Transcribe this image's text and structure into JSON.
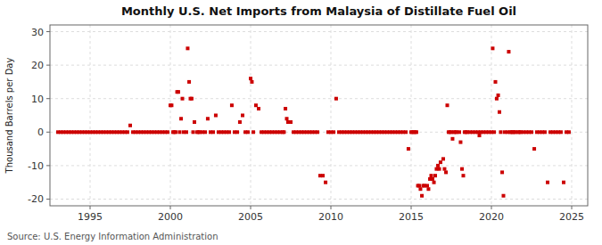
{
  "chart_data": {
    "type": "scatter",
    "title": "Monthly U.S. Net Imports from Malaysia of Distillate Fuel Oil",
    "ylabel": "Thousand Barrels per Day",
    "source": "Source: U.S. Energy Information Administration",
    "color": "#cc0000",
    "marker": "square",
    "grid": true,
    "xlim": [
      1992.5,
      2026.0
    ],
    "ylim": [
      -22,
      32
    ],
    "xticks": [
      1995,
      2000,
      2005,
      2010,
      2015,
      2020,
      2025
    ],
    "yticks": [
      -20,
      -10,
      0,
      10,
      20,
      30
    ],
    "x": [
      1993.0,
      1993.17,
      1993.33,
      1993.5,
      1993.67,
      1993.83,
      1994.0,
      1994.17,
      1994.33,
      1994.5,
      1994.67,
      1994.83,
      1995.0,
      1995.17,
      1995.33,
      1995.5,
      1995.67,
      1995.83,
      1996.0,
      1996.17,
      1996.33,
      1996.5,
      1996.67,
      1996.83,
      1997.0,
      1997.17,
      1997.33,
      1997.5,
      1997.67,
      1997.83,
      1998.0,
      1998.17,
      1998.33,
      1998.5,
      1998.67,
      1998.83,
      1999.0,
      1999.17,
      1999.33,
      1999.5,
      1999.67,
      1999.83,
      2000.0,
      2000.08,
      2000.17,
      2000.25,
      2000.33,
      2000.42,
      2000.5,
      2000.58,
      2000.67,
      2000.75,
      2000.83,
      2001.0,
      2001.08,
      2001.17,
      2001.25,
      2001.33,
      2001.42,
      2001.5,
      2001.67,
      2001.75,
      2001.83,
      2002.0,
      2002.17,
      2002.33,
      2002.5,
      2002.67,
      2002.83,
      2003.0,
      2003.17,
      2003.33,
      2003.5,
      2003.67,
      2003.83,
      2004.0,
      2004.17,
      2004.33,
      2004.5,
      2004.67,
      2004.83,
      2005.0,
      2005.08,
      2005.17,
      2005.33,
      2005.5,
      2005.67,
      2005.83,
      2006.0,
      2006.17,
      2006.33,
      2006.5,
      2006.67,
      2006.83,
      2007.0,
      2007.08,
      2007.17,
      2007.25,
      2007.33,
      2007.5,
      2007.67,
      2007.83,
      2008.0,
      2008.17,
      2008.33,
      2008.5,
      2008.67,
      2008.83,
      2009.0,
      2009.17,
      2009.33,
      2009.5,
      2009.67,
      2009.83,
      2010.0,
      2010.17,
      2010.33,
      2010.5,
      2010.67,
      2010.83,
      2011.0,
      2011.17,
      2011.33,
      2011.5,
      2011.67,
      2011.83,
      2012.0,
      2012.17,
      2012.33,
      2012.5,
      2012.67,
      2012.83,
      2013.0,
      2013.17,
      2013.33,
      2013.5,
      2013.67,
      2013.83,
      2014.0,
      2014.17,
      2014.33,
      2014.5,
      2014.67,
      2014.83,
      2015.0,
      2015.08,
      2015.17,
      2015.25,
      2015.33,
      2015.42,
      2015.5,
      2015.58,
      2015.67,
      2015.75,
      2015.83,
      2016.0,
      2016.08,
      2016.17,
      2016.25,
      2016.33,
      2016.42,
      2016.5,
      2016.58,
      2016.67,
      2016.75,
      2016.83,
      2017.0,
      2017.08,
      2017.17,
      2017.25,
      2017.33,
      2017.42,
      2017.5,
      2017.58,
      2017.67,
      2017.75,
      2017.83,
      2018.0,
      2018.08,
      2018.17,
      2018.25,
      2018.33,
      2018.42,
      2018.5,
      2018.67,
      2018.83,
      2019.0,
      2019.17,
      2019.25,
      2019.33,
      2019.5,
      2019.67,
      2019.83,
      2020.0,
      2020.08,
      2020.17,
      2020.25,
      2020.33,
      2020.42,
      2020.5,
      2020.58,
      2020.67,
      2020.75,
      2020.83,
      2021.0,
      2021.08,
      2021.17,
      2021.25,
      2021.33,
      2021.42,
      2021.5,
      2021.67,
      2021.75,
      2021.83,
      2022.0,
      2022.17,
      2022.33,
      2022.5,
      2022.67,
      2022.83,
      2023.0,
      2023.17,
      2023.33,
      2023.5,
      2023.67,
      2023.83,
      2024.0,
      2024.17,
      2024.33,
      2024.5,
      2024.67,
      2024.83
    ],
    "values": [
      0,
      0,
      0,
      0,
      0,
      0,
      0,
      0,
      0,
      0,
      0,
      0,
      0,
      0,
      0,
      0,
      0,
      0,
      0,
      0,
      0,
      0,
      0,
      0,
      0,
      0,
      0,
      2,
      0,
      0,
      0,
      0,
      0,
      0,
      0,
      0,
      0,
      0,
      0,
      0,
      0,
      0,
      8,
      8,
      0,
      0,
      0,
      12,
      12,
      0,
      4,
      10,
      0,
      0,
      25,
      15,
      10,
      10,
      0,
      3,
      0,
      0,
      0,
      0,
      0,
      4,
      0,
      0,
      5,
      0,
      0,
      0,
      0,
      0,
      8,
      0,
      0,
      3,
      5,
      0,
      0,
      16,
      15,
      0,
      8,
      7,
      0,
      0,
      0,
      0,
      0,
      0,
      0,
      0,
      0,
      0,
      7,
      4,
      3,
      3,
      0,
      0,
      0,
      0,
      0,
      0,
      0,
      0,
      0,
      0,
      -13,
      -13,
      -15,
      0,
      0,
      0,
      10,
      0,
      0,
      0,
      0,
      0,
      0,
      0,
      0,
      0,
      0,
      0,
      0,
      0,
      0,
      0,
      0,
      0,
      0,
      0,
      0,
      0,
      0,
      0,
      0,
      0,
      0,
      -5,
      0,
      0,
      0,
      0,
      0,
      -16,
      -16,
      -17,
      -19,
      -16,
      -16,
      -16,
      -17,
      -14,
      -13,
      -14,
      -15,
      -13,
      -11,
      -10,
      -11,
      -9,
      -8,
      -11,
      -12,
      8,
      0,
      0,
      0,
      -2,
      0,
      0,
      0,
      0,
      -3,
      -11,
      -13,
      0,
      0,
      0,
      0,
      0,
      0,
      0,
      -1,
      0,
      0,
      0,
      0,
      0,
      25,
      0,
      15,
      10,
      11,
      6,
      0,
      -12,
      -19,
      0,
      0,
      24,
      0,
      0,
      0,
      0,
      0,
      0,
      0,
      0,
      0,
      0,
      0,
      0,
      -5,
      0,
      0,
      0,
      0,
      -15,
      0,
      0,
      0,
      0,
      0,
      -15,
      0,
      0
    ]
  }
}
